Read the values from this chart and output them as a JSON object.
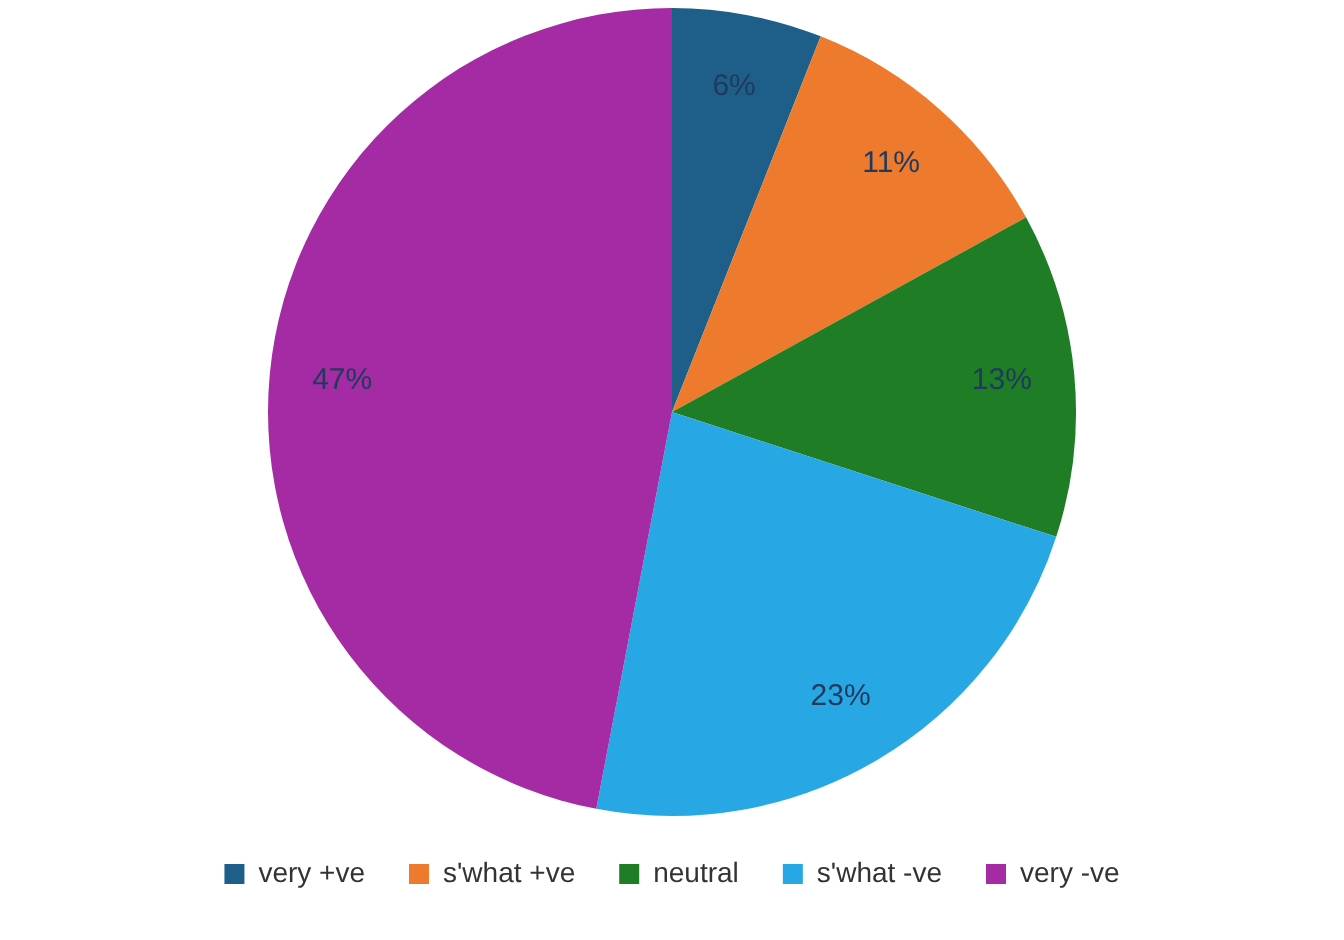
{
  "chart_data": {
    "type": "pie",
    "categories": [
      "very +ve",
      "s'what +ve",
      "neutral",
      "s'what -ve",
      "very -ve"
    ],
    "values": [
      6,
      11,
      13,
      23,
      47
    ],
    "colors": [
      "#1e5f8a",
      "#ee7a2e",
      "#1f7d25",
      "#27a7e3",
      "#a42ba4"
    ],
    "value_labels": [
      "6%",
      "11%",
      "13%",
      "23%",
      "47%"
    ],
    "legend": "bottom"
  }
}
